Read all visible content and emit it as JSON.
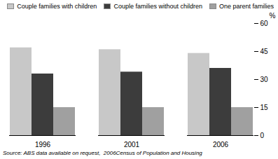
{
  "chart_data": {
    "type": "bar",
    "categories": [
      "1996",
      "2001",
      "2006"
    ],
    "series": [
      {
        "name": "Couple families with children",
        "color": "#c8c8c8",
        "values": [
          47,
          46,
          44
        ]
      },
      {
        "name": "Couple families without children",
        "color": "#3c3c3c",
        "values": [
          33,
          34,
          36
        ]
      },
      {
        "name": "One parent families",
        "color": "#a0a0a0",
        "values": [
          15,
          15,
          15
        ]
      }
    ],
    "ylabel": "%",
    "ylim": [
      0,
      60
    ],
    "yticks": [
      0,
      15,
      30,
      45,
      60
    ],
    "grid": false,
    "legend": "upper right",
    "caption": "Source: ABS data available on request,  2006Census of Population and Housing"
  }
}
